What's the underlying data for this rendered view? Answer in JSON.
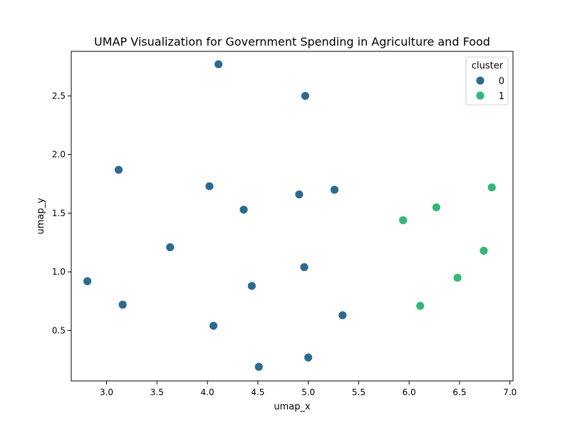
{
  "chart_data": {
    "type": "scatter",
    "title": "UMAP Visualization for Government Spending in Agriculture and Food",
    "xlabel": "umap_x",
    "ylabel": "umap_y",
    "xlim": [
      2.65,
      7.03
    ],
    "ylim": [
      0.07,
      2.88
    ],
    "x_ticks": [
      "3.0",
      "3.5",
      "4.0",
      "4.5",
      "5.0",
      "5.5",
      "6.0",
      "6.5",
      "7.0"
    ],
    "y_ticks": [
      "0.5",
      "1.0",
      "1.5",
      "2.0",
      "2.5"
    ],
    "grid": false,
    "legend": {
      "title": "cluster",
      "placement": "top-right",
      "entries": [
        {
          "label": "0",
          "color": "#2c6b8f"
        },
        {
          "label": "1",
          "color": "#35b779"
        }
      ]
    },
    "series": [
      {
        "name": "0",
        "color": "#2c6b8f",
        "points": [
          {
            "x": 4.11,
            "y": 2.77
          },
          {
            "x": 4.97,
            "y": 2.5
          },
          {
            "x": 3.12,
            "y": 1.87
          },
          {
            "x": 4.02,
            "y": 1.73
          },
          {
            "x": 4.91,
            "y": 1.66
          },
          {
            "x": 5.26,
            "y": 1.7
          },
          {
            "x": 4.36,
            "y": 1.53
          },
          {
            "x": 3.63,
            "y": 1.21
          },
          {
            "x": 4.96,
            "y": 1.04
          },
          {
            "x": 2.81,
            "y": 0.92
          },
          {
            "x": 4.44,
            "y": 0.88
          },
          {
            "x": 3.16,
            "y": 0.72
          },
          {
            "x": 5.34,
            "y": 0.63
          },
          {
            "x": 4.06,
            "y": 0.54
          },
          {
            "x": 5.0,
            "y": 0.27
          },
          {
            "x": 4.51,
            "y": 0.19
          }
        ]
      },
      {
        "name": "1",
        "color": "#35b779",
        "points": [
          {
            "x": 6.82,
            "y": 1.72
          },
          {
            "x": 6.27,
            "y": 1.55
          },
          {
            "x": 5.94,
            "y": 1.44
          },
          {
            "x": 6.74,
            "y": 1.18
          },
          {
            "x": 6.48,
            "y": 0.95
          },
          {
            "x": 6.11,
            "y": 0.71
          }
        ]
      }
    ]
  }
}
